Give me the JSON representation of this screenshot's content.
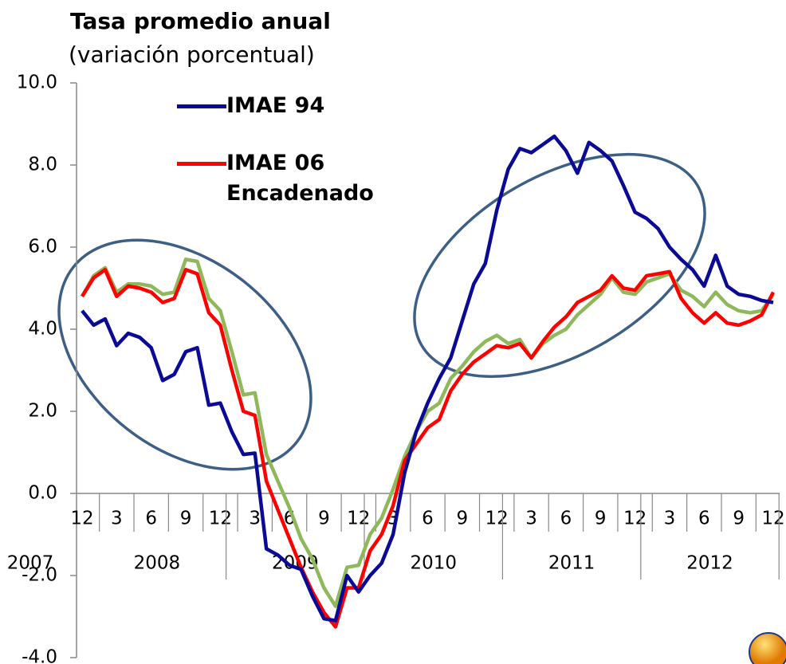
{
  "chart_data": {
    "type": "line",
    "title": "Tasa promedio anual",
    "subtitle": "(variación porcentual)",
    "categories": [
      "12",
      null,
      null,
      "3",
      null,
      null,
      "6",
      null,
      null,
      "9",
      null,
      null,
      "12",
      null,
      null,
      "3",
      null,
      null,
      "6",
      null,
      null,
      "9",
      null,
      null,
      "12",
      null,
      null,
      "3",
      null,
      null,
      "6",
      null,
      null,
      "9",
      null,
      null,
      "12",
      null,
      null,
      "3",
      null,
      null,
      "6",
      null,
      null,
      "9",
      null,
      null,
      "12",
      null,
      null,
      "3",
      null,
      null,
      "6",
      null,
      null,
      "9",
      null,
      null,
      "12"
    ],
    "years": [
      "2007",
      "2008",
      "2009",
      "2010",
      "2011",
      "2012"
    ],
    "series": [
      {
        "name": "IMAE 94",
        "color": "#0a0a96",
        "values": [
          4.45,
          4.1,
          4.25,
          3.6,
          3.9,
          3.8,
          3.55,
          2.75,
          2.9,
          3.45,
          3.55,
          2.15,
          2.2,
          1.5,
          0.95,
          0.98,
          -1.35,
          -1.5,
          -1.75,
          -1.85,
          -2.5,
          -3.05,
          -3.1,
          -2.0,
          -2.4,
          -2.0,
          -1.7,
          -1.0,
          0.5,
          1.5,
          2.2,
          2.8,
          3.3,
          4.2,
          5.1,
          5.6,
          6.9,
          7.9,
          8.4,
          8.3,
          8.5,
          8.7,
          8.35,
          7.8,
          8.55,
          8.35,
          8.1,
          7.5,
          6.85,
          6.7,
          6.45,
          6.0,
          5.7,
          5.45,
          5.05,
          5.8,
          5.05,
          4.85,
          4.8,
          4.7,
          4.65
        ]
      },
      {
        "name": "IMAE 06 Encadenado",
        "color": "#ff0000",
        "values": [
          4.8,
          5.25,
          5.45,
          4.8,
          5.05,
          5.0,
          4.9,
          4.65,
          4.75,
          5.45,
          5.35,
          4.4,
          4.1,
          3.0,
          2.0,
          1.9,
          0.3,
          -0.4,
          -1.1,
          -1.8,
          -2.4,
          -2.9,
          -3.25,
          -2.3,
          -2.3,
          -1.4,
          -1.0,
          -0.3,
          0.8,
          1.2,
          1.6,
          1.8,
          2.5,
          2.9,
          3.2,
          3.4,
          3.6,
          3.55,
          3.65,
          3.3,
          3.7,
          4.05,
          4.3,
          4.65,
          4.8,
          4.95,
          5.3,
          5.0,
          4.95,
          5.3,
          5.35,
          5.4,
          4.75,
          4.4,
          4.15,
          4.4,
          4.15,
          4.1,
          4.2,
          4.35,
          4.9
        ]
      },
      {
        "color": "#8fb85a",
        "values": [
          4.8,
          5.3,
          5.5,
          4.9,
          5.1,
          5.1,
          5.05,
          4.85,
          4.9,
          5.7,
          5.65,
          4.75,
          4.45,
          3.45,
          2.4,
          2.45,
          0.95,
          0.3,
          -0.35,
          -1.1,
          -1.6,
          -2.3,
          -2.75,
          -1.8,
          -1.75,
          -1.0,
          -0.6,
          0.1,
          0.9,
          1.5,
          2.0,
          2.2,
          2.8,
          3.1,
          3.45,
          3.7,
          3.85,
          3.65,
          3.75,
          3.3,
          3.65,
          3.85,
          4.0,
          4.35,
          4.6,
          4.85,
          5.25,
          4.9,
          4.85,
          5.15,
          5.25,
          5.35,
          4.95,
          4.8,
          4.55,
          4.9,
          4.6,
          4.45,
          4.4,
          4.45,
          4.85
        ]
      }
    ],
    "ylim": [
      -4,
      10
    ],
    "yticks": [
      {
        "value": -4,
        "label": "-4.0"
      },
      {
        "value": -2,
        "label": "-2.0"
      },
      {
        "value": 0,
        "label": "0.0"
      },
      {
        "value": 2,
        "label": "2.0"
      },
      {
        "value": 4,
        "label": "4.0"
      },
      {
        "value": 6,
        "label": "6.0"
      },
      {
        "value": 8,
        "label": "8.0"
      },
      {
        "value": 10,
        "label": "10.0"
      }
    ]
  }
}
